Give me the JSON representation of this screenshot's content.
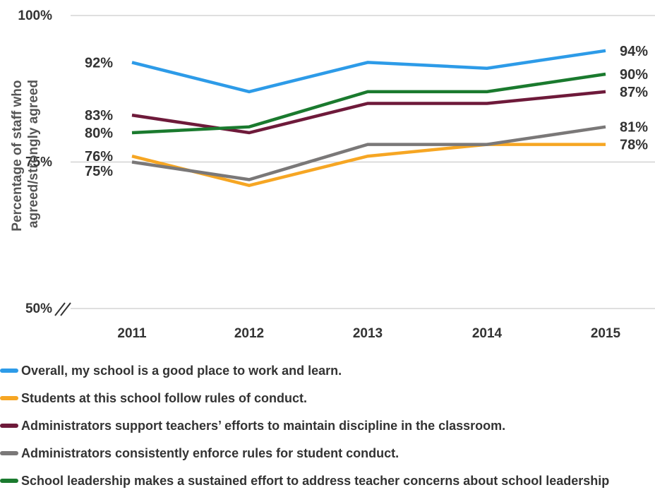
{
  "chart_data": {
    "type": "line",
    "ylabel": "Percentage of staff who agreed/strongly agreed",
    "ylim": [
      50,
      100
    ],
    "y_ticks": [
      "100%",
      "75%",
      "50%"
    ],
    "x": [
      "2011",
      "2012",
      "2013",
      "2014",
      "2015"
    ],
    "axis_break": true,
    "grid": true,
    "legend_position": "bottom",
    "series": [
      {
        "name": "Overall, my school is a good place to work and learn.",
        "color": "#2d9be8",
        "values": [
          92,
          87,
          92,
          91,
          94
        ],
        "start_label": "92%",
        "end_label": "94%"
      },
      {
        "name": "Students at this school follow rules of conduct.",
        "color": "#f6a623",
        "values": [
          76,
          71,
          76,
          78,
          78
        ],
        "start_label": "76%",
        "end_label": "78%"
      },
      {
        "name": "Administrators support teachers’ efforts to maintain discipline in the classroom.",
        "color": "#6e1a3a",
        "values": [
          83,
          80,
          85,
          85,
          87
        ],
        "start_label": "83%",
        "end_label": "87%"
      },
      {
        "name": "Administrators consistently enforce rules for student conduct.",
        "color": "#7a7878",
        "values": [
          75,
          72,
          78,
          78,
          81
        ],
        "start_label": "75%",
        "end_label": "81%"
      },
      {
        "name": "School leadership makes a sustained effort to address teacher concerns about school leadership",
        "color": "#1a7a2e",
        "values": [
          80,
          81,
          87,
          87,
          90
        ],
        "start_label": "80%",
        "end_label": "90%"
      }
    ]
  }
}
